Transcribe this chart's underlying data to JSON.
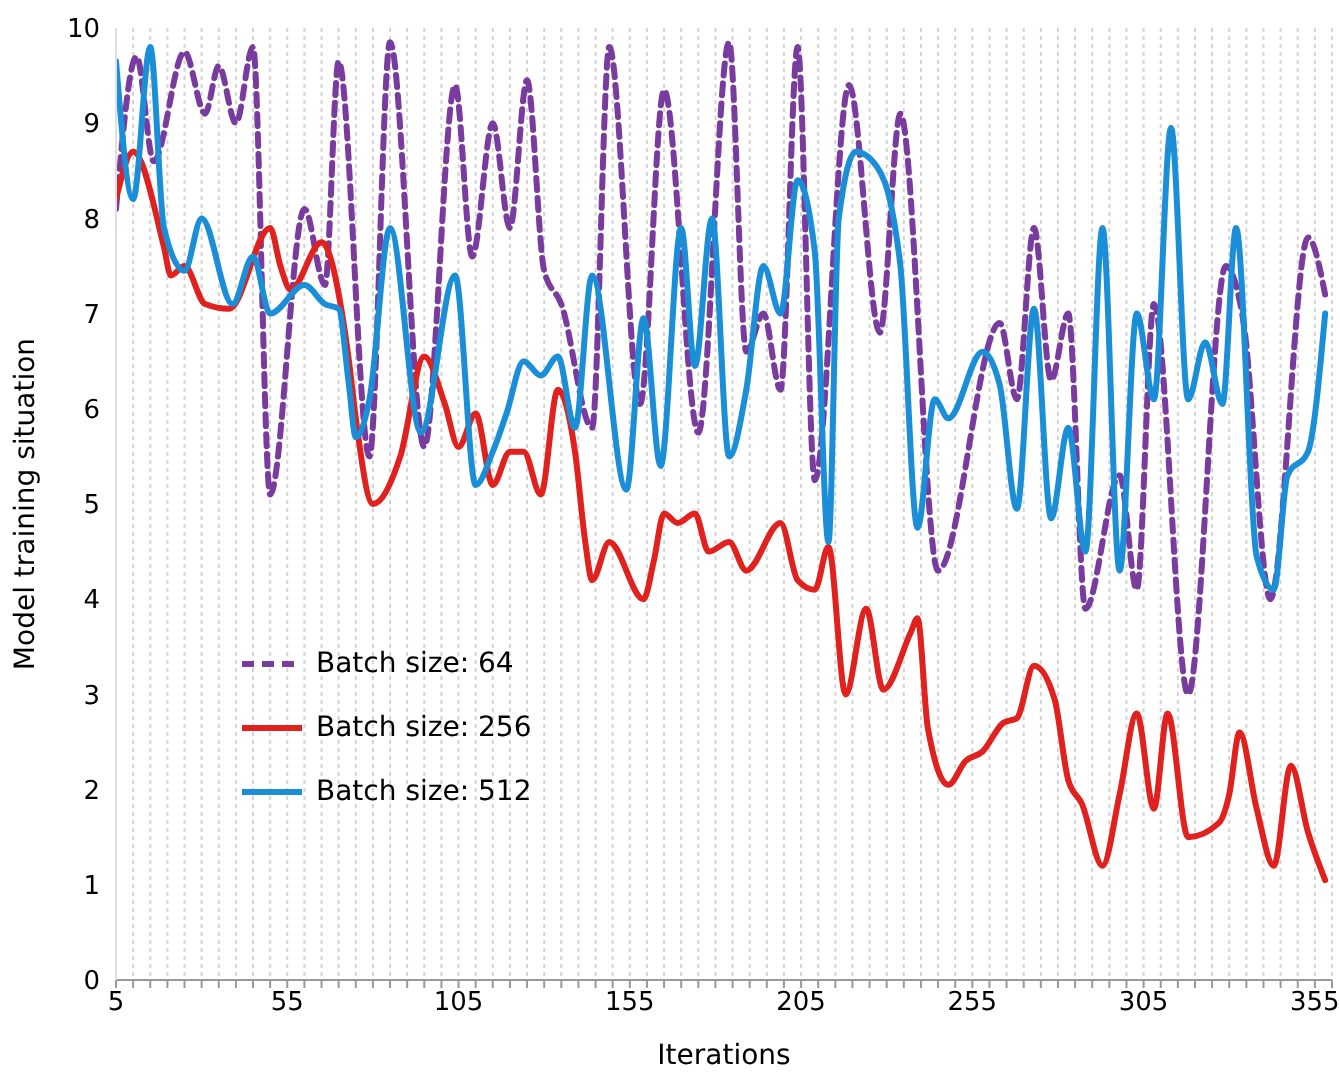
{
  "chart_data": {
    "type": "line",
    "xlabel": "Iterations",
    "ylabel": "Model training situation",
    "xlim": [
      5,
      360
    ],
    "ylim": [
      0,
      10
    ],
    "xticks": [
      5,
      {
        "value": 10,
        "label": null
      },
      {
        "value": 15,
        "label": null
      },
      {
        "value": 20,
        "label": null
      },
      {
        "value": 25,
        "label": null
      },
      {
        "value": 30,
        "label": null
      },
      {
        "value": 35,
        "label": null
      },
      {
        "value": 40,
        "label": null
      },
      {
        "value": 45,
        "label": null
      },
      {
        "value": 50,
        "label": null
      },
      55,
      {
        "value": 60,
        "label": null
      },
      {
        "value": 65,
        "label": null
      },
      {
        "value": 70,
        "label": null
      },
      {
        "value": 75,
        "label": null
      },
      {
        "value": 80,
        "label": null
      },
      {
        "value": 85,
        "label": null
      },
      {
        "value": 90,
        "label": null
      },
      {
        "value": 95,
        "label": null
      },
      {
        "value": 100,
        "label": null
      },
      105,
      {
        "value": 110,
        "label": null
      },
      {
        "value": 115,
        "label": null
      },
      {
        "value": 120,
        "label": null
      },
      {
        "value": 125,
        "label": null
      },
      {
        "value": 130,
        "label": null
      },
      {
        "value": 135,
        "label": null
      },
      {
        "value": 140,
        "label": null
      },
      {
        "value": 145,
        "label": null
      },
      {
        "value": 150,
        "label": null
      },
      155,
      {
        "value": 160,
        "label": null
      },
      {
        "value": 165,
        "label": null
      },
      {
        "value": 170,
        "label": null
      },
      {
        "value": 175,
        "label": null
      },
      {
        "value": 180,
        "label": null
      },
      {
        "value": 185,
        "label": null
      },
      {
        "value": 190,
        "label": null
      },
      {
        "value": 195,
        "label": null
      },
      {
        "value": 200,
        "label": null
      },
      205,
      {
        "value": 210,
        "label": null
      },
      {
        "value": 215,
        "label": null
      },
      {
        "value": 220,
        "label": null
      },
      {
        "value": 225,
        "label": null
      },
      {
        "value": 230,
        "label": null
      },
      {
        "value": 235,
        "label": null
      },
      {
        "value": 240,
        "label": null
      },
      {
        "value": 245,
        "label": null
      },
      {
        "value": 250,
        "label": null
      },
      255,
      {
        "value": 260,
        "label": null
      },
      {
        "value": 265,
        "label": null
      },
      {
        "value": 270,
        "label": null
      },
      {
        "value": 275,
        "label": null
      },
      {
        "value": 280,
        "label": null
      },
      {
        "value": 285,
        "label": null
      },
      {
        "value": 290,
        "label": null
      },
      {
        "value": 295,
        "label": null
      },
      {
        "value": 300,
        "label": null
      },
      305,
      {
        "value": 310,
        "label": null
      },
      {
        "value": 315,
        "label": null
      },
      {
        "value": 320,
        "label": null
      },
      {
        "value": 325,
        "label": null
      },
      {
        "value": 330,
        "label": null
      },
      {
        "value": 335,
        "label": null
      },
      {
        "value": 340,
        "label": null
      },
      {
        "value": 345,
        "label": null
      },
      {
        "value": 350,
        "label": null
      },
      355,
      {
        "value": 360,
        "label": null
      }
    ],
    "yticks": [
      0,
      1,
      2,
      3,
      4,
      5,
      6,
      7,
      8,
      9,
      10
    ],
    "grid": "x",
    "legend": "bottom left",
    "series": [
      {
        "name": "Batch size: 64",
        "color": "#7a3b9e",
        "line_style": "dashed",
        "x": [
          5,
          11,
          16,
          25,
          31,
          35,
          40,
          45,
          50,
          60,
          66,
          70,
          79,
          85,
          95,
          104,
          109,
          115,
          120,
          125,
          130,
          135,
          144,
          149,
          158,
          165,
          175,
          184,
          189,
          194,
          199,
          204,
          209,
          219,
          228,
          234,
          245,
          263,
          268,
          273,
          278,
          283,
          288,
          298,
          303,
          308,
          318,
          329,
          334,
          342,
          353,
          358
        ],
        "values": [
          8.1,
          9.7,
          8.6,
          9.75,
          9.1,
          9.6,
          9.0,
          9.8,
          5.1,
          8.1,
          7.3,
          9.65,
          5.5,
          9.85,
          5.6,
          9.4,
          7.6,
          9.0,
          7.9,
          9.45,
          7.45,
          7.1,
          5.8,
          9.8,
          6.05,
          9.35,
          5.75,
          9.85,
          6.6,
          7.0,
          6.2,
          9.8,
          5.25,
          9.4,
          6.8,
          9.1,
          4.3,
          6.9,
          6.1,
          7.9,
          6.3,
          7.0,
          3.9,
          5.3,
          4.1,
          7.1,
          3.0,
          7.5,
          6.95,
          4.0,
          7.8,
          7.2
        ]
      },
      {
        "name": "Batch size: 256",
        "color": "#e0211d",
        "line_style": "solid",
        "x": [
          5,
          10,
          19,
          21,
          25,
          31,
          38,
          50,
          53,
          56,
          65,
          71,
          73,
          75,
          80,
          88,
          95,
          101,
          105,
          110,
          115,
          120,
          124,
          129,
          134,
          139,
          142,
          144,
          149,
          159,
          162,
          165,
          169,
          174,
          178,
          184,
          189,
          199,
          204,
          209,
          213,
          218,
          224,
          229,
          237,
          239,
          242,
          248,
          253,
          258,
          264,
          268,
          273,
          279,
          283,
          287,
          293,
          298,
          303,
          308,
          312,
          318,
          327,
          330,
          333,
          338,
          343,
          348,
          353,
          358
        ],
        "values": [
          8.2,
          8.7,
          7.7,
          7.4,
          7.5,
          7.1,
          7.05,
          7.9,
          7.5,
          7.25,
          7.75,
          7.0,
          6.5,
          5.9,
          5.0,
          5.5,
          6.55,
          6.05,
          5.6,
          5.95,
          5.2,
          5.55,
          5.55,
          5.1,
          6.2,
          5.55,
          4.6,
          4.2,
          4.6,
          4.0,
          4.4,
          4.9,
          4.8,
          4.9,
          4.5,
          4.6,
          4.3,
          4.8,
          4.2,
          4.1,
          4.55,
          3.0,
          3.9,
          3.05,
          3.65,
          3.8,
          2.65,
          2.05,
          2.3,
          2.4,
          2.7,
          2.75,
          3.3,
          2.95,
          2.1,
          1.85,
          1.2,
          1.95,
          2.8,
          1.8,
          2.8,
          1.5,
          1.65,
          1.95,
          2.6,
          1.8,
          1.2,
          2.25,
          1.55,
          1.05
        ]
      },
      {
        "name": "Batch size: 512",
        "color": "#1b8ed8",
        "line_style": "solid",
        "x": [
          5,
          10,
          15,
          19,
          25,
          30,
          39,
          45,
          50,
          60,
          66,
          70,
          73,
          75,
          79,
          85,
          94,
          104,
          110,
          115,
          119,
          124,
          129,
          134,
          139,
          144,
          154,
          159,
          164,
          170,
          174,
          179,
          184,
          189,
          194,
          199,
          204,
          209,
          213,
          216,
          221,
          227,
          232,
          234,
          239,
          244,
          248,
          258,
          263,
          268,
          273,
          278,
          283,
          288,
          293,
          298,
          303,
          308,
          313,
          318,
          323,
          328,
          332,
          338,
          343,
          347,
          353,
          358
        ],
        "values": [
          9.65,
          8.2,
          9.8,
          7.9,
          7.45,
          8.0,
          7.1,
          7.6,
          7.0,
          7.3,
          7.1,
          7.05,
          6.25,
          5.7,
          6.1,
          7.9,
          5.75,
          7.4,
          5.2,
          5.55,
          5.95,
          6.5,
          6.35,
          6.55,
          5.8,
          7.4,
          5.15,
          6.95,
          5.4,
          7.9,
          6.45,
          8.0,
          5.5,
          6.2,
          7.5,
          7.0,
          8.4,
          7.65,
          4.6,
          8.0,
          8.7,
          8.55,
          8.0,
          7.5,
          4.75,
          6.1,
          5.9,
          6.6,
          6.25,
          4.95,
          7.05,
          4.85,
          5.8,
          4.5,
          7.9,
          4.3,
          7.0,
          6.1,
          8.95,
          6.1,
          6.7,
          6.05,
          7.9,
          4.45,
          4.1,
          5.3,
          5.55,
          7.0
        ]
      }
    ]
  }
}
